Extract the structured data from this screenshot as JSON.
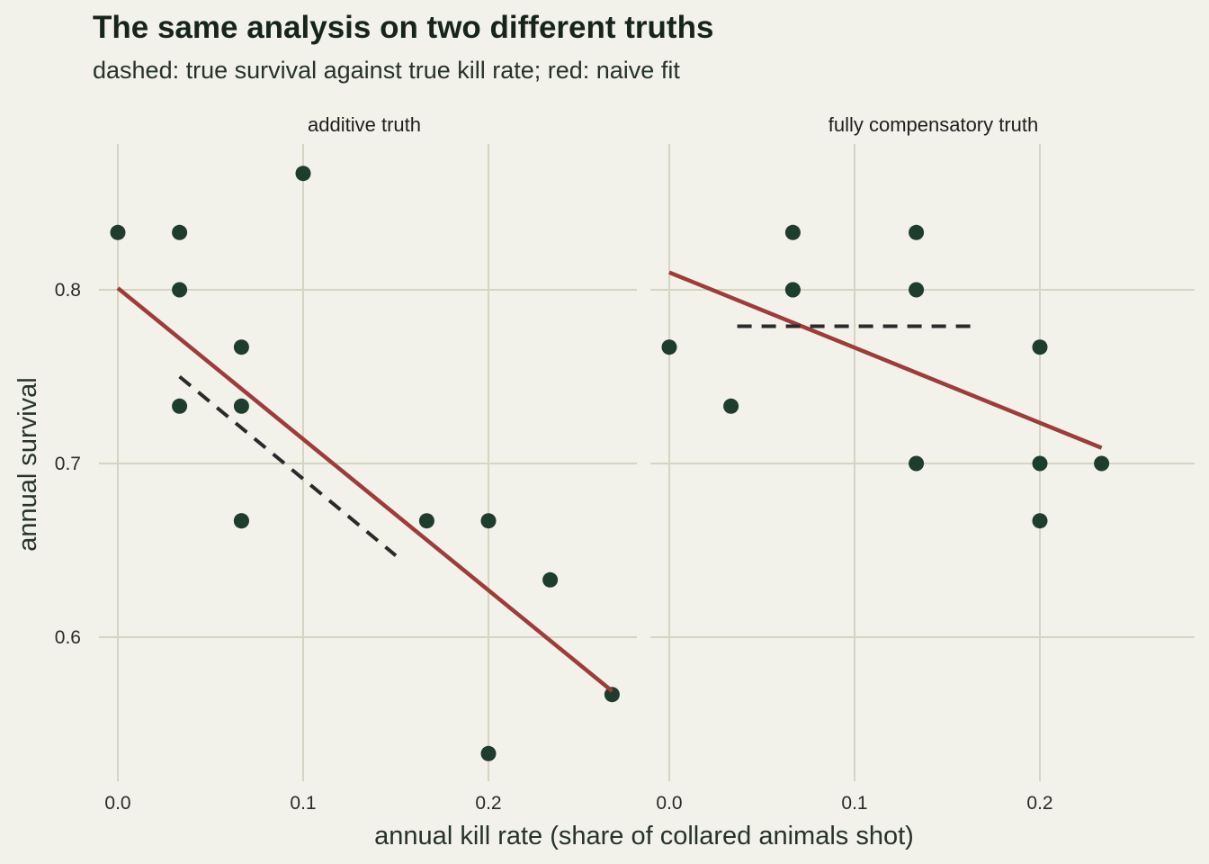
{
  "title": "The same analysis on two different truths",
  "subtitle": "dashed: true survival against true kill rate; red: naive fit",
  "chart_data": {
    "type": "scatter",
    "xlabel": "annual kill rate (share of collared animals shot)",
    "ylabel": "annual survival",
    "xlim": [
      -0.018,
      0.28
    ],
    "ylim": [
      0.517,
      0.883
    ],
    "x_ticks": [
      0.0,
      0.1,
      0.2
    ],
    "x_tick_labels": [
      "0.0",
      "0.1",
      "0.2"
    ],
    "y_ticks": [
      0.6,
      0.7,
      0.8
    ],
    "y_tick_labels": [
      "0.6",
      "0.7",
      "0.8"
    ],
    "grid": true,
    "colors": {
      "points": "#1f3d2c",
      "naive_fit": "#9e3b3b",
      "true_line": "#2a2a2a",
      "grid": "#d6d4c2",
      "background": "#f2f1ea"
    },
    "panels": [
      {
        "label": "additive truth",
        "points": [
          {
            "x": 0.0,
            "y": 0.833
          },
          {
            "x": 0.0333,
            "y": 0.833
          },
          {
            "x": 0.0333,
            "y": 0.8
          },
          {
            "x": 0.0333,
            "y": 0.733
          },
          {
            "x": 0.0667,
            "y": 0.767
          },
          {
            "x": 0.0667,
            "y": 0.733
          },
          {
            "x": 0.0667,
            "y": 0.667
          },
          {
            "x": 0.0667,
            "y": 0.667
          },
          {
            "x": 0.1,
            "y": 0.867
          },
          {
            "x": 0.1667,
            "y": 0.667
          },
          {
            "x": 0.2,
            "y": 0.667
          },
          {
            "x": 0.2,
            "y": 0.533
          },
          {
            "x": 0.2333,
            "y": 0.633
          },
          {
            "x": 0.2667,
            "y": 0.567
          }
        ],
        "naive_fit": {
          "x": [
            0.0,
            0.2667
          ],
          "y": [
            0.801,
            0.569
          ]
        },
        "true_line": {
          "x": [
            0.0333,
            0.15
          ],
          "y": [
            0.75,
            0.647
          ]
        }
      },
      {
        "label": "fully compensatory truth",
        "points": [
          {
            "x": 0.0,
            "y": 0.767
          },
          {
            "x": 0.0333,
            "y": 0.733
          },
          {
            "x": 0.0667,
            "y": 0.833
          },
          {
            "x": 0.0667,
            "y": 0.8
          },
          {
            "x": 0.0667,
            "y": 0.8
          },
          {
            "x": 0.1333,
            "y": 0.833
          },
          {
            "x": 0.1333,
            "y": 0.8
          },
          {
            "x": 0.1333,
            "y": 0.7
          },
          {
            "x": 0.2,
            "y": 0.767
          },
          {
            "x": 0.2,
            "y": 0.7
          },
          {
            "x": 0.2,
            "y": 0.667
          },
          {
            "x": 0.2333,
            "y": 0.7
          }
        ],
        "naive_fit": {
          "x": [
            0.0,
            0.2333
          ],
          "y": [
            0.81,
            0.709
          ]
        },
        "true_line": {
          "x": [
            0.0367,
            0.1667
          ],
          "y": [
            0.779,
            0.779
          ]
        }
      }
    ]
  }
}
